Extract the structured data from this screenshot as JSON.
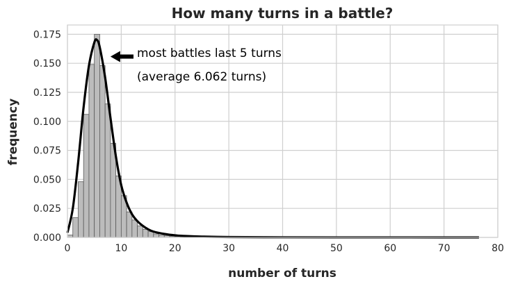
{
  "chart_data": {
    "type": "bar",
    "title": "How many turns in a battle?",
    "xlabel": "number of turns",
    "ylabel": "frequency",
    "xlim": [
      0,
      80
    ],
    "ylim": [
      0,
      0.183
    ],
    "grid": true,
    "x_ticks": [
      0,
      10,
      20,
      30,
      40,
      50,
      60,
      70,
      80
    ],
    "y_ticks": [
      0.0,
      0.025,
      0.05,
      0.075,
      0.1,
      0.125,
      0.15,
      0.175
    ],
    "x_tick_labels": [
      "0",
      "10",
      "20",
      "30",
      "40",
      "50",
      "60",
      "70",
      "80"
    ],
    "y_tick_labels": [
      "0.000",
      "0.025",
      "0.050",
      "0.075",
      "0.100",
      "0.125",
      "0.150",
      "0.175"
    ],
    "histogram": {
      "bin_edges": [
        0,
        1,
        2,
        3,
        4,
        5,
        6,
        7,
        8,
        9,
        10,
        11,
        12,
        13,
        14,
        15,
        16,
        17,
        18,
        19,
        20,
        21,
        22,
        23,
        24,
        25,
        26,
        27,
        28,
        29,
        30
      ],
      "values": [
        0.002,
        0.017,
        0.048,
        0.106,
        0.149,
        0.175,
        0.148,
        0.115,
        0.081,
        0.053,
        0.036,
        0.022,
        0.015,
        0.01,
        0.007,
        0.005,
        0.003,
        0.002,
        0.0015,
        0.001,
        0.0008,
        0.0006,
        0.0004,
        0.0003,
        0.0002,
        0.0002,
        0.0001,
        0.0001,
        0.0001,
        0.0001
      ]
    },
    "kde": {
      "x": [
        0,
        1,
        2,
        3,
        4,
        5,
        5.5,
        6,
        7,
        8,
        9,
        10,
        11,
        12,
        13,
        14,
        15,
        16,
        18,
        20,
        22,
        25,
        30,
        40,
        50,
        60,
        70,
        76.5
      ],
      "y": [
        0.004,
        0.025,
        0.065,
        0.112,
        0.148,
        0.168,
        0.17,
        0.164,
        0.138,
        0.103,
        0.07,
        0.045,
        0.03,
        0.02,
        0.014,
        0.01,
        0.007,
        0.005,
        0.003,
        0.0018,
        0.0012,
        0.0007,
        0.0003,
        0.0001,
        5e-05,
        3e-05,
        2e-05,
        1e-05
      ]
    },
    "annotations": {
      "main": "most battles last 5 turns",
      "sub": "(average 6.062 turns)",
      "arrow_target": [
        8,
        0.157
      ]
    },
    "colors": {
      "hist_fill": "#bcbcbc",
      "hist_edge": "#595959",
      "kde_line": "#000000",
      "grid": "#cfcfcf",
      "text": "#262626"
    }
  }
}
